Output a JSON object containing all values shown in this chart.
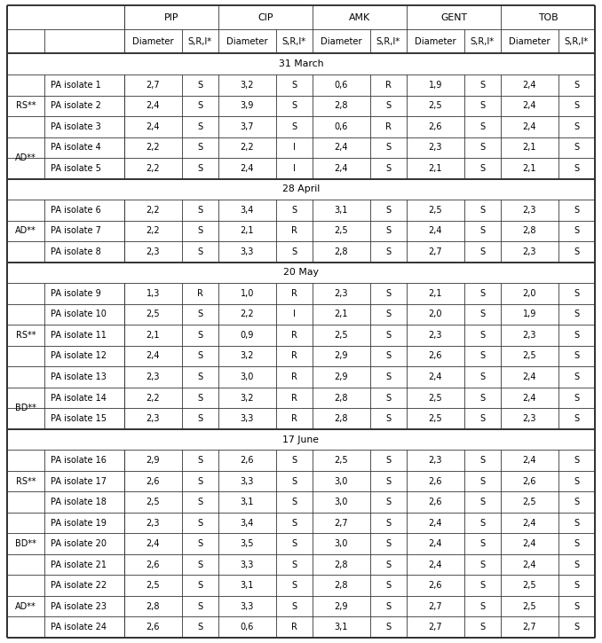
{
  "group_headers": [
    "PIP",
    "CIP",
    "AMK",
    "GENT",
    "TOB"
  ],
  "col_sub_headers": [
    "Diameter",
    "S,R,I*"
  ],
  "sections": [
    {
      "date": "31 March",
      "groups": [
        {
          "label": "RS**",
          "rows": [
            [
              "PA isolate 1",
              "2,7",
              "S",
              "3,2",
              "S",
              "0,6",
              "R",
              "1,9",
              "S",
              "2,4",
              "S"
            ],
            [
              "PA isolate 2",
              "2,4",
              "S",
              "3,9",
              "S",
              "2,8",
              "S",
              "2,5",
              "S",
              "2,4",
              "S"
            ],
            [
              "PA isolate 3",
              "2,4",
              "S",
              "3,7",
              "S",
              "0,6",
              "R",
              "2,6",
              "S",
              "2,4",
              "S"
            ]
          ]
        },
        {
          "label": "AD**",
          "rows": [
            [
              "PA isolate 4",
              "2,2",
              "S",
              "2,2",
              "I",
              "2,4",
              "S",
              "2,3",
              "S",
              "2,1",
              "S"
            ],
            [
              "PA isolate 5",
              "2,2",
              "S",
              "2,4",
              "I",
              "2,4",
              "S",
              "2,1",
              "S",
              "2,1",
              "S"
            ]
          ]
        }
      ]
    },
    {
      "date": "28 April",
      "groups": [
        {
          "label": "AD**",
          "rows": [
            [
              "PA isolate 6",
              "2,2",
              "S",
              "3,4",
              "S",
              "3,1",
              "S",
              "2,5",
              "S",
              "2,3",
              "S"
            ],
            [
              "PA isolate 7",
              "2,2",
              "S",
              "2,1",
              "R",
              "2,5",
              "S",
              "2,4",
              "S",
              "2,8",
              "S"
            ],
            [
              "PA isolate 8",
              "2,3",
              "S",
              "3,3",
              "S",
              "2,8",
              "S",
              "2,7",
              "S",
              "2,3",
              "S"
            ]
          ]
        }
      ]
    },
    {
      "date": "20 May",
      "groups": [
        {
          "label": "RS**",
          "rows": [
            [
              "PA isolate 9",
              "1,3",
              "R",
              "1,0",
              "R",
              "2,3",
              "S",
              "2,1",
              "S",
              "2,0",
              "S"
            ],
            [
              "PA isolate 10",
              "2,5",
              "S",
              "2,2",
              "I",
              "2,1",
              "S",
              "2,0",
              "S",
              "1,9",
              "S"
            ],
            [
              "PA isolate 11",
              "2,1",
              "S",
              "0,9",
              "R",
              "2,5",
              "S",
              "2,3",
              "S",
              "2,3",
              "S"
            ],
            [
              "PA isolate 12",
              "2,4",
              "S",
              "3,2",
              "R",
              "2,9",
              "S",
              "2,6",
              "S",
              "2,5",
              "S"
            ],
            [
              "PA isolate 13",
              "2,3",
              "S",
              "3,0",
              "R",
              "2,9",
              "S",
              "2,4",
              "S",
              "2,4",
              "S"
            ]
          ]
        },
        {
          "label": "BD**",
          "rows": [
            [
              "PA isolate 14",
              "2,2",
              "S",
              "3,2",
              "R",
              "2,8",
              "S",
              "2,5",
              "S",
              "2,4",
              "S"
            ],
            [
              "PA isolate 15",
              "2,3",
              "S",
              "3,3",
              "R",
              "2,8",
              "S",
              "2,5",
              "S",
              "2,3",
              "S"
            ]
          ]
        }
      ]
    },
    {
      "date": "17 June",
      "groups": [
        {
          "label": "RS**",
          "rows": [
            [
              "PA isolate 16",
              "2,9",
              "S",
              "2,6",
              "S",
              "2,5",
              "S",
              "2,3",
              "S",
              "2,4",
              "S"
            ],
            [
              "PA isolate 17",
              "2,6",
              "S",
              "3,3",
              "S",
              "3,0",
              "S",
              "2,6",
              "S",
              "2,6",
              "S"
            ],
            [
              "PA isolate 18",
              "2,5",
              "S",
              "3,1",
              "S",
              "3,0",
              "S",
              "2,6",
              "S",
              "2,5",
              "S"
            ]
          ]
        },
        {
          "label": "BD**",
          "rows": [
            [
              "PA isolate 19",
              "2,3",
              "S",
              "3,4",
              "S",
              "2,7",
              "S",
              "2,4",
              "S",
              "2,4",
              "S"
            ],
            [
              "PA isolate 20",
              "2,4",
              "S",
              "3,5",
              "S",
              "3,0",
              "S",
              "2,4",
              "S",
              "2,4",
              "S"
            ],
            [
              "PA isolate 21",
              "2,6",
              "S",
              "3,3",
              "S",
              "2,8",
              "S",
              "2,4",
              "S",
              "2,4",
              "S"
            ]
          ]
        },
        {
          "label": "AD**",
          "rows": [
            [
              "PA isolate 22",
              "2,5",
              "S",
              "3,1",
              "S",
              "2,8",
              "S",
              "2,6",
              "S",
              "2,5",
              "S"
            ],
            [
              "PA isolate 23",
              "2,8",
              "S",
              "3,3",
              "S",
              "2,9",
              "S",
              "2,7",
              "S",
              "2,5",
              "S"
            ],
            [
              "PA isolate 24",
              "2,6",
              "S",
              "0,6",
              "R",
              "3,1",
              "S",
              "2,7",
              "S",
              "2,7",
              "S"
            ]
          ]
        }
      ]
    }
  ],
  "lw_thick": 1.4,
  "lw_thin": 0.6,
  "fs_group_header": 7.8,
  "fs_sub_header": 7.2,
  "fs_date": 7.8,
  "fs_data": 7.0,
  "fs_label": 7.0,
  "bg_color": "white",
  "line_color": "#333333"
}
